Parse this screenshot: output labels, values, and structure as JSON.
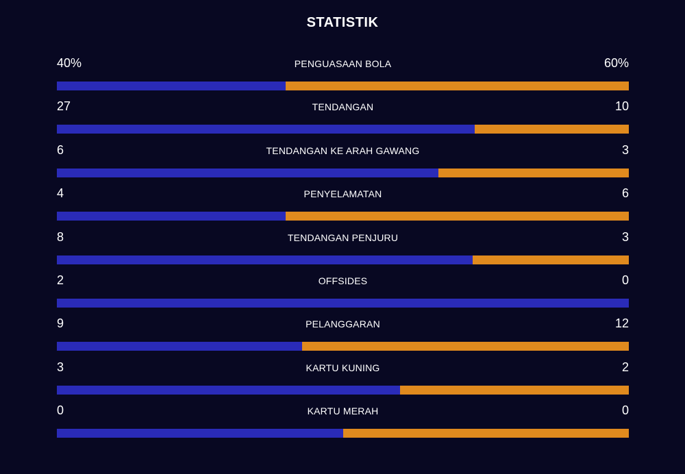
{
  "title": "STATISTIK",
  "colors": {
    "background": "#080822",
    "home_bar": "#2a2bb8",
    "away_bar": "#e08a1e",
    "text": "#ffffff"
  },
  "stats": [
    {
      "label": "PENGUASAAN BOLA",
      "home": "40%",
      "away": "60%",
      "home_share": 0.4
    },
    {
      "label": "TENDANGAN",
      "home": "27",
      "away": "10",
      "home_share": 0.73
    },
    {
      "label": "TENDANGAN KE ARAH GAWANG",
      "home": "6",
      "away": "3",
      "home_share": 0.667
    },
    {
      "label": "PENYELAMATAN",
      "home": "4",
      "away": "6",
      "home_share": 0.4
    },
    {
      "label": "TENDANGAN PENJURU",
      "home": "8",
      "away": "3",
      "home_share": 0.727
    },
    {
      "label": "OFFSIDES",
      "home": "2",
      "away": "0",
      "home_share": 1.0
    },
    {
      "label": "PELANGGARAN",
      "home": "9",
      "away": "12",
      "home_share": 0.429
    },
    {
      "label": "KARTU KUNING",
      "home": "3",
      "away": "2",
      "home_share": 0.6
    },
    {
      "label": "KARTU MERAH",
      "home": "0",
      "away": "0",
      "home_share": 0.5
    }
  ]
}
